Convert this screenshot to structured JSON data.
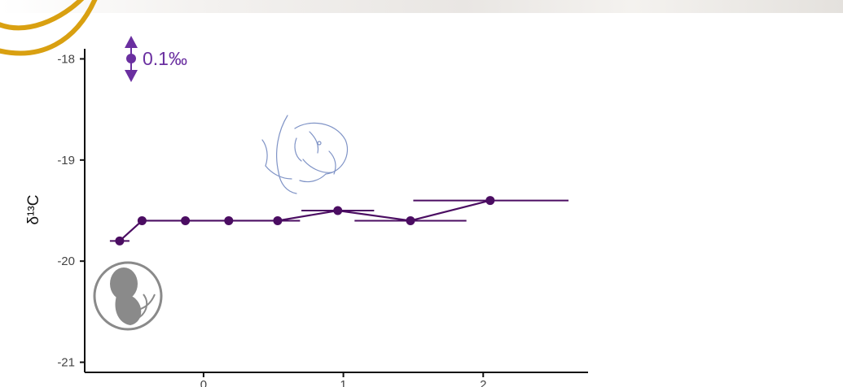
{
  "colors": {
    "series": "#4b0d62",
    "annotation": "#6a2fa0",
    "gold_ring": "#d9a011",
    "icon_gray": "#8a8a8a",
    "axis": "#111111"
  },
  "icons": {
    "gold_ring": "gold-ring-decoration",
    "precision": "double-arrow-precision-icon",
    "breastfeeding": "breastfeeding-infant-sketch",
    "fetus": "fetus-in-womb-icon"
  },
  "precision": {
    "label": "0.1‰",
    "value": 0.1
  },
  "chart_data": {
    "type": "line",
    "title": "",
    "xlabel": "",
    "ylabel": "δ¹³C",
    "xlim": [
      -0.85,
      2.75
    ],
    "ylim": [
      -21.1,
      -17.9
    ],
    "xticks": [
      0,
      1,
      2
    ],
    "xtick_labels": [
      "0",
      "1",
      "2"
    ],
    "yticks": [
      -21,
      -20,
      -19,
      -18
    ],
    "ytick_labels": [
      "-21",
      "-20",
      "-19",
      "-18"
    ],
    "grid": false,
    "legend": "none",
    "series": [
      {
        "points": [
          {
            "x": -0.6,
            "y": -19.8,
            "xmin": -0.67,
            "xmax": -0.53
          },
          {
            "x": -0.44,
            "y": -19.6
          },
          {
            "x": -0.13,
            "y": -19.6
          },
          {
            "x": 0.18,
            "y": -19.6
          },
          {
            "x": 0.53,
            "y": -19.6,
            "xmin": 0.38,
            "xmax": 0.69
          },
          {
            "x": 0.96,
            "y": -19.5,
            "xmin": 0.7,
            "xmax": 1.22
          },
          {
            "x": 1.48,
            "y": -19.6,
            "xmin": 1.08,
            "xmax": 1.88
          },
          {
            "x": 2.05,
            "y": -19.4,
            "xmin": 1.5,
            "xmax": 2.61
          }
        ]
      }
    ]
  }
}
